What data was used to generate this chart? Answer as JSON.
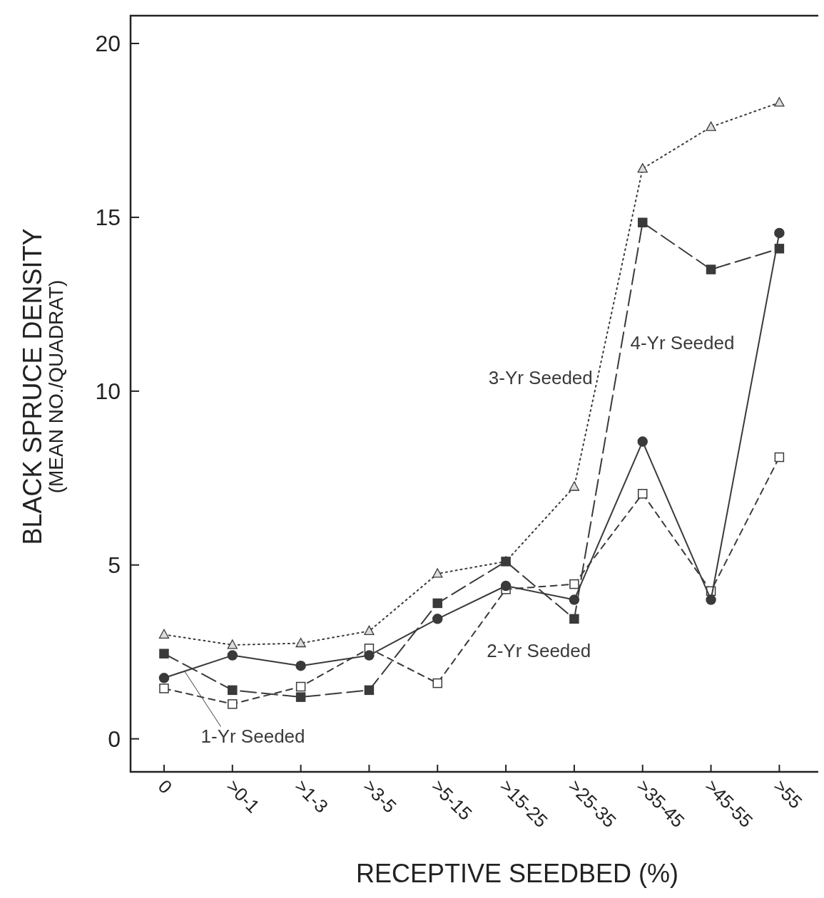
{
  "chart_data": {
    "type": "line",
    "xlabel": "RECEPTIVE SEEDBED (%)",
    "ylabel": "BLACK SPRUCE DENSITY\n(MEAN NO./QUADRAT)",
    "categories": [
      "0",
      ">0-1",
      ">1-3",
      ">3-5",
      ">5-15",
      ">15-25",
      ">25-35",
      ">35-45",
      ">45-55",
      ">55"
    ],
    "ylim": [
      -0.95,
      20.8
    ],
    "yticks": [
      0,
      5,
      10,
      15,
      20
    ],
    "grid": false,
    "series": [
      {
        "name": "1-Yr Seeded",
        "color": "#3a3a3a",
        "marker": "circle",
        "line_style": "solid",
        "values": [
          1.75,
          2.4,
          2.1,
          2.4,
          3.45,
          4.4,
          4.0,
          8.55,
          4.0,
          14.55
        ]
      },
      {
        "name": "2-Yr Seeded",
        "color": "#3a3a3a",
        "marker": "square",
        "line_style": "dashed",
        "values": [
          1.45,
          1.0,
          1.5,
          2.6,
          1.6,
          4.3,
          4.45,
          7.05,
          4.25,
          8.1
        ]
      },
      {
        "name": "3-Yr Seeded",
        "color": "#3a3a3a",
        "marker": "triangle",
        "line_style": "dotted",
        "values": [
          3.0,
          2.7,
          2.75,
          3.1,
          4.75,
          5.1,
          7.25,
          16.4,
          17.6,
          18.3
        ]
      },
      {
        "name": "4-Yr Seeded",
        "color": "#3a3a3a",
        "marker": "square",
        "line_style": "longdash",
        "values": [
          2.45,
          1.4,
          1.2,
          1.4,
          3.9,
          5.1,
          3.45,
          14.85,
          13.5,
          14.1
        ]
      }
    ]
  }
}
